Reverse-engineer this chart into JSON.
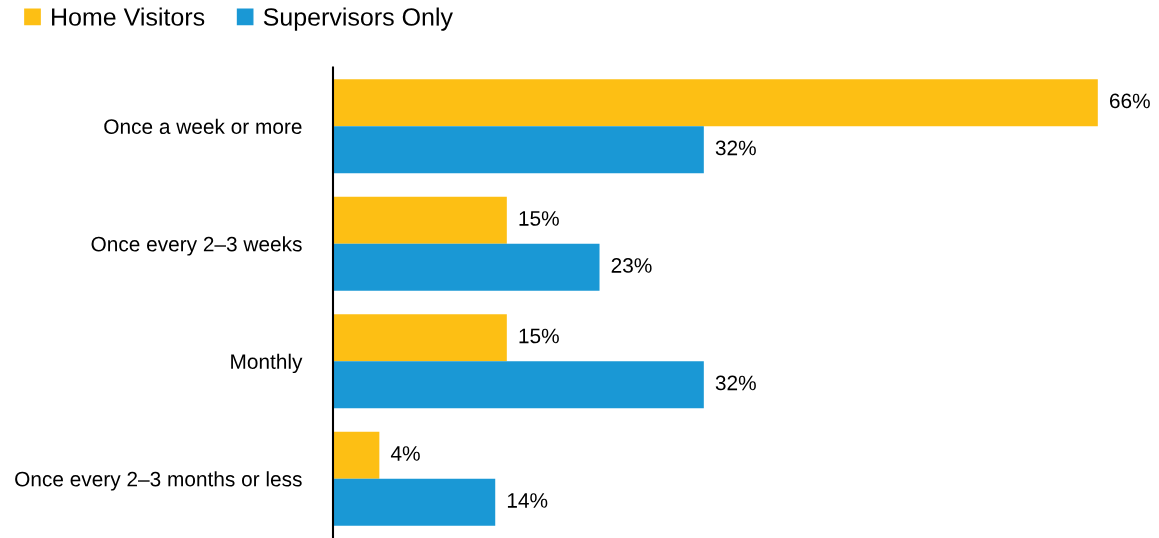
{
  "chart_data": {
    "type": "bar",
    "orientation": "horizontal",
    "legend": "top left",
    "grid": false,
    "tick_labels": "y",
    "categories": [
      "Once a week or more",
      "Once every 2–3 weeks",
      "Monthly",
      "Once every 2–3 months or less"
    ],
    "series": [
      {
        "name": "Home Visitors",
        "color": "#fdbf14",
        "values": [
          66,
          15,
          15,
          4
        ],
        "value_labels": [
          "66%",
          "15%",
          "15%",
          "4%"
        ]
      },
      {
        "name": "Supervisors Only",
        "color": "#1a98d5",
        "values": [
          32,
          23,
          32,
          14
        ],
        "value_labels": [
          "32%",
          "23%",
          "32%",
          "14%"
        ]
      }
    ]
  }
}
